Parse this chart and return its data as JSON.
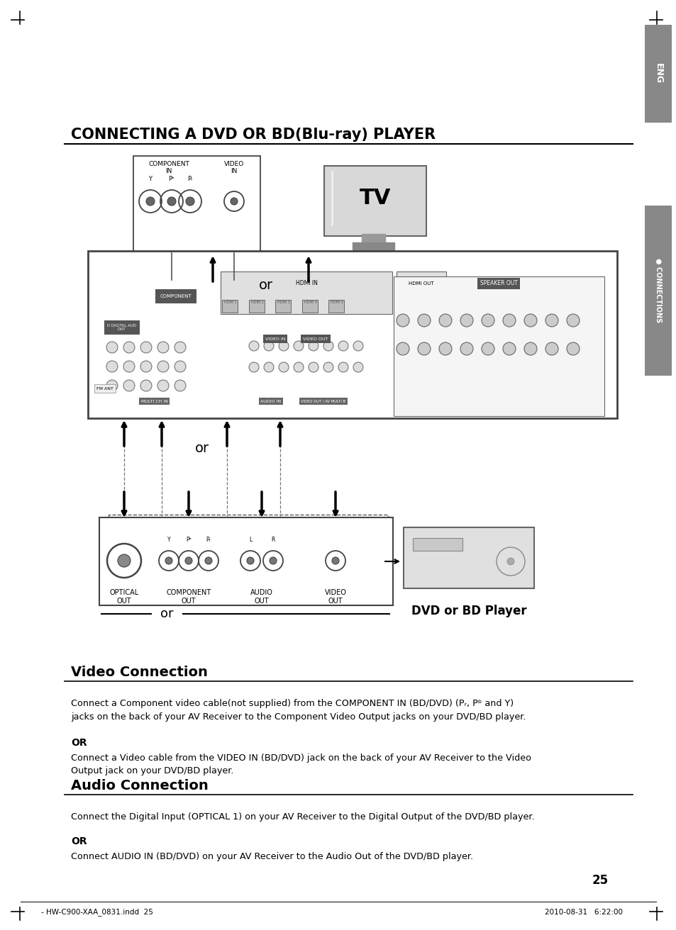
{
  "page_bg": "#ffffff",
  "title": "CONNECTING A DVD OR BD(Blu-ray) PLAYER",
  "section1_title": "Video Connection",
  "section1_text1": "Connect a Component video cable(not supplied) from the COMPONENT IN (BD/DVD) (Pᵣ, Pᵇ and Y)\njacks on the back of your AV Receiver to the Component Video Output jacks on your DVD/BD player.",
  "section1_or": "OR",
  "section1_text2": "Connect a Video cable from the VIDEO IN (BD/DVD) jack on the back of your AV Receiver to the Video\nOutput jack on your DVD/BD player.",
  "section2_title": "Audio Connection",
  "section2_text1": "Connect the Digital Input (OPTICAL 1) on your AV Receiver to the Digital Output of the DVD/BD player.",
  "section2_or": "OR",
  "section2_text2": "Connect AUDIO IN (BD/DVD) on your AV Receiver to the Audio Out of the DVD/BD player.",
  "eng_tab_color": "#888888",
  "connections_tab_color": "#888888",
  "footer_left": "- HW-C900-XAA_0831.indd  25",
  "footer_right": "2010-08-31   6:22:00",
  "page_num": "25",
  "or_diagram": "or",
  "dvd_bd_label": "DVD or BD Player",
  "tv_label": "TV",
  "component_in_label": "COMPONENT\nIN",
  "video_in_label": "VIDEO\nIN",
  "optical_out_label": "OPTICAL\nOUT",
  "component_out_label": "COMPONENT\nOUT",
  "audio_out_label": "AUDIO\nOUT",
  "video_out_label": "VIDEO\nOUT"
}
